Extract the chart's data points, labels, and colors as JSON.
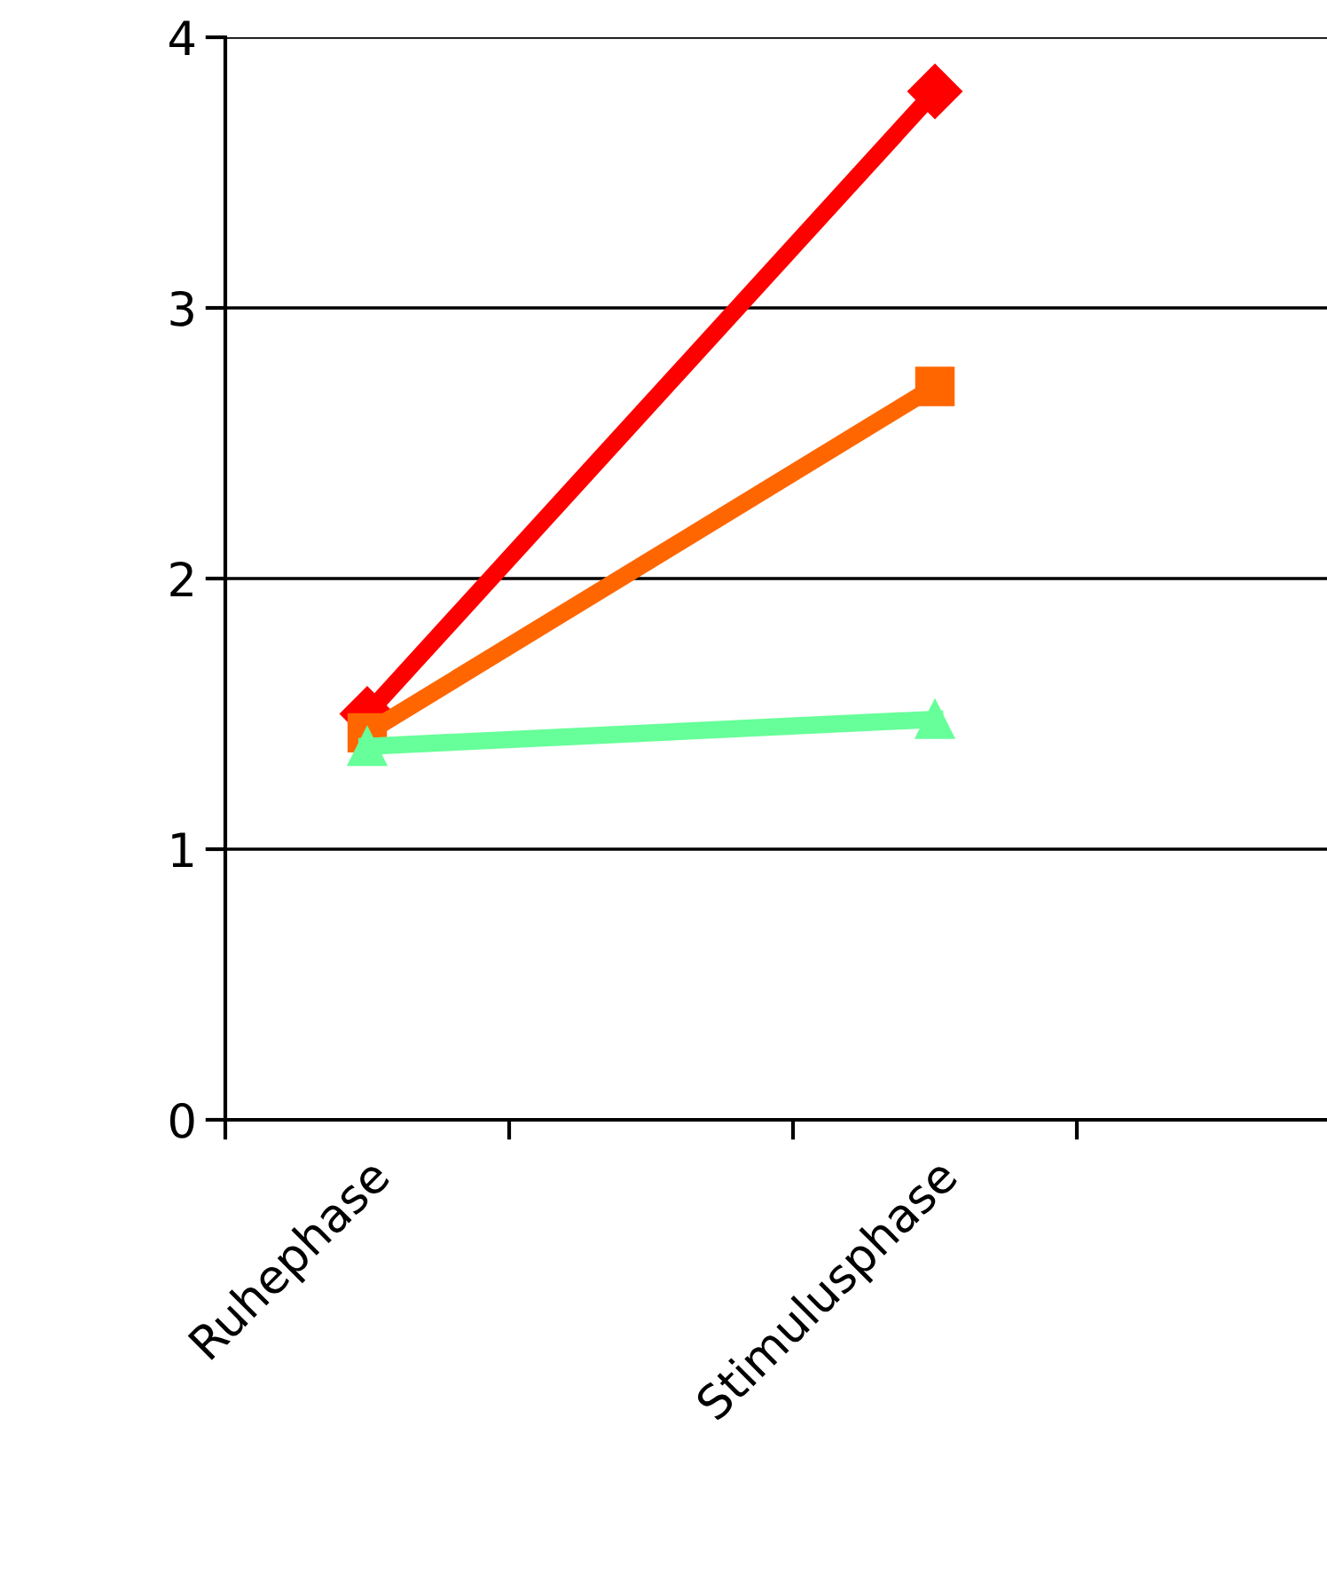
{
  "chart_data": {
    "type": "line",
    "categories": [
      "Ruhephase",
      null,
      "Stimulusphase",
      null
    ],
    "series": [
      {
        "color": "#ff0000",
        "marker": "diamond",
        "values": [
          1.5,
          null,
          3.8,
          null
        ]
      },
      {
        "color": "#ff6600",
        "marker": "square",
        "values": [
          1.43,
          null,
          2.71,
          null
        ]
      },
      {
        "color": "#66ff99",
        "marker": "triangle",
        "values": [
          1.38,
          null,
          1.48,
          null
        ]
      }
    ],
    "ylim": [
      0,
      4
    ],
    "yticks": [
      0,
      1,
      2,
      3,
      4
    ],
    "grid": "y"
  }
}
